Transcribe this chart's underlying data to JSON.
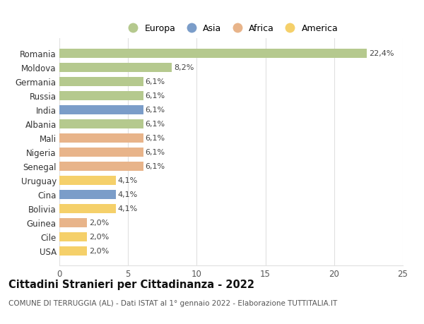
{
  "categories": [
    "Romania",
    "Moldova",
    "Germania",
    "Russia",
    "India",
    "Albania",
    "Mali",
    "Nigeria",
    "Senegal",
    "Uruguay",
    "Cina",
    "Bolivia",
    "Guinea",
    "Cile",
    "USA"
  ],
  "values": [
    22.4,
    8.2,
    6.1,
    6.1,
    6.1,
    6.1,
    6.1,
    6.1,
    6.1,
    4.1,
    4.1,
    4.1,
    2.0,
    2.0,
    2.0
  ],
  "labels": [
    "22,4%",
    "8,2%",
    "6,1%",
    "6,1%",
    "6,1%",
    "6,1%",
    "6,1%",
    "6,1%",
    "6,1%",
    "4,1%",
    "4,1%",
    "4,1%",
    "2,0%",
    "2,0%",
    "2,0%"
  ],
  "continent": [
    "Europa",
    "Europa",
    "Europa",
    "Europa",
    "Asia",
    "Europa",
    "Africa",
    "Africa",
    "Africa",
    "America",
    "Asia",
    "America",
    "Africa",
    "America",
    "America"
  ],
  "colors": {
    "Europa": "#b5c98e",
    "Asia": "#7b9dc9",
    "Africa": "#e8b48a",
    "America": "#f5d06a"
  },
  "title": "Cittadini Stranieri per Cittadinanza - 2022",
  "subtitle": "COMUNE DI TERRUGGIA (AL) - Dati ISTAT al 1° gennaio 2022 - Elaborazione TUTTITALIA.IT",
  "xlim": [
    0,
    25
  ],
  "xticks": [
    0,
    5,
    10,
    15,
    20,
    25
  ],
  "background_color": "#ffffff",
  "grid_color": "#e0e0e0",
  "bar_height": 0.65,
  "label_fontsize": 8,
  "title_fontsize": 10.5,
  "subtitle_fontsize": 7.5,
  "ytick_fontsize": 8.5,
  "xtick_fontsize": 8.5,
  "legend_fontsize": 9,
  "legend_marker_size": 120
}
